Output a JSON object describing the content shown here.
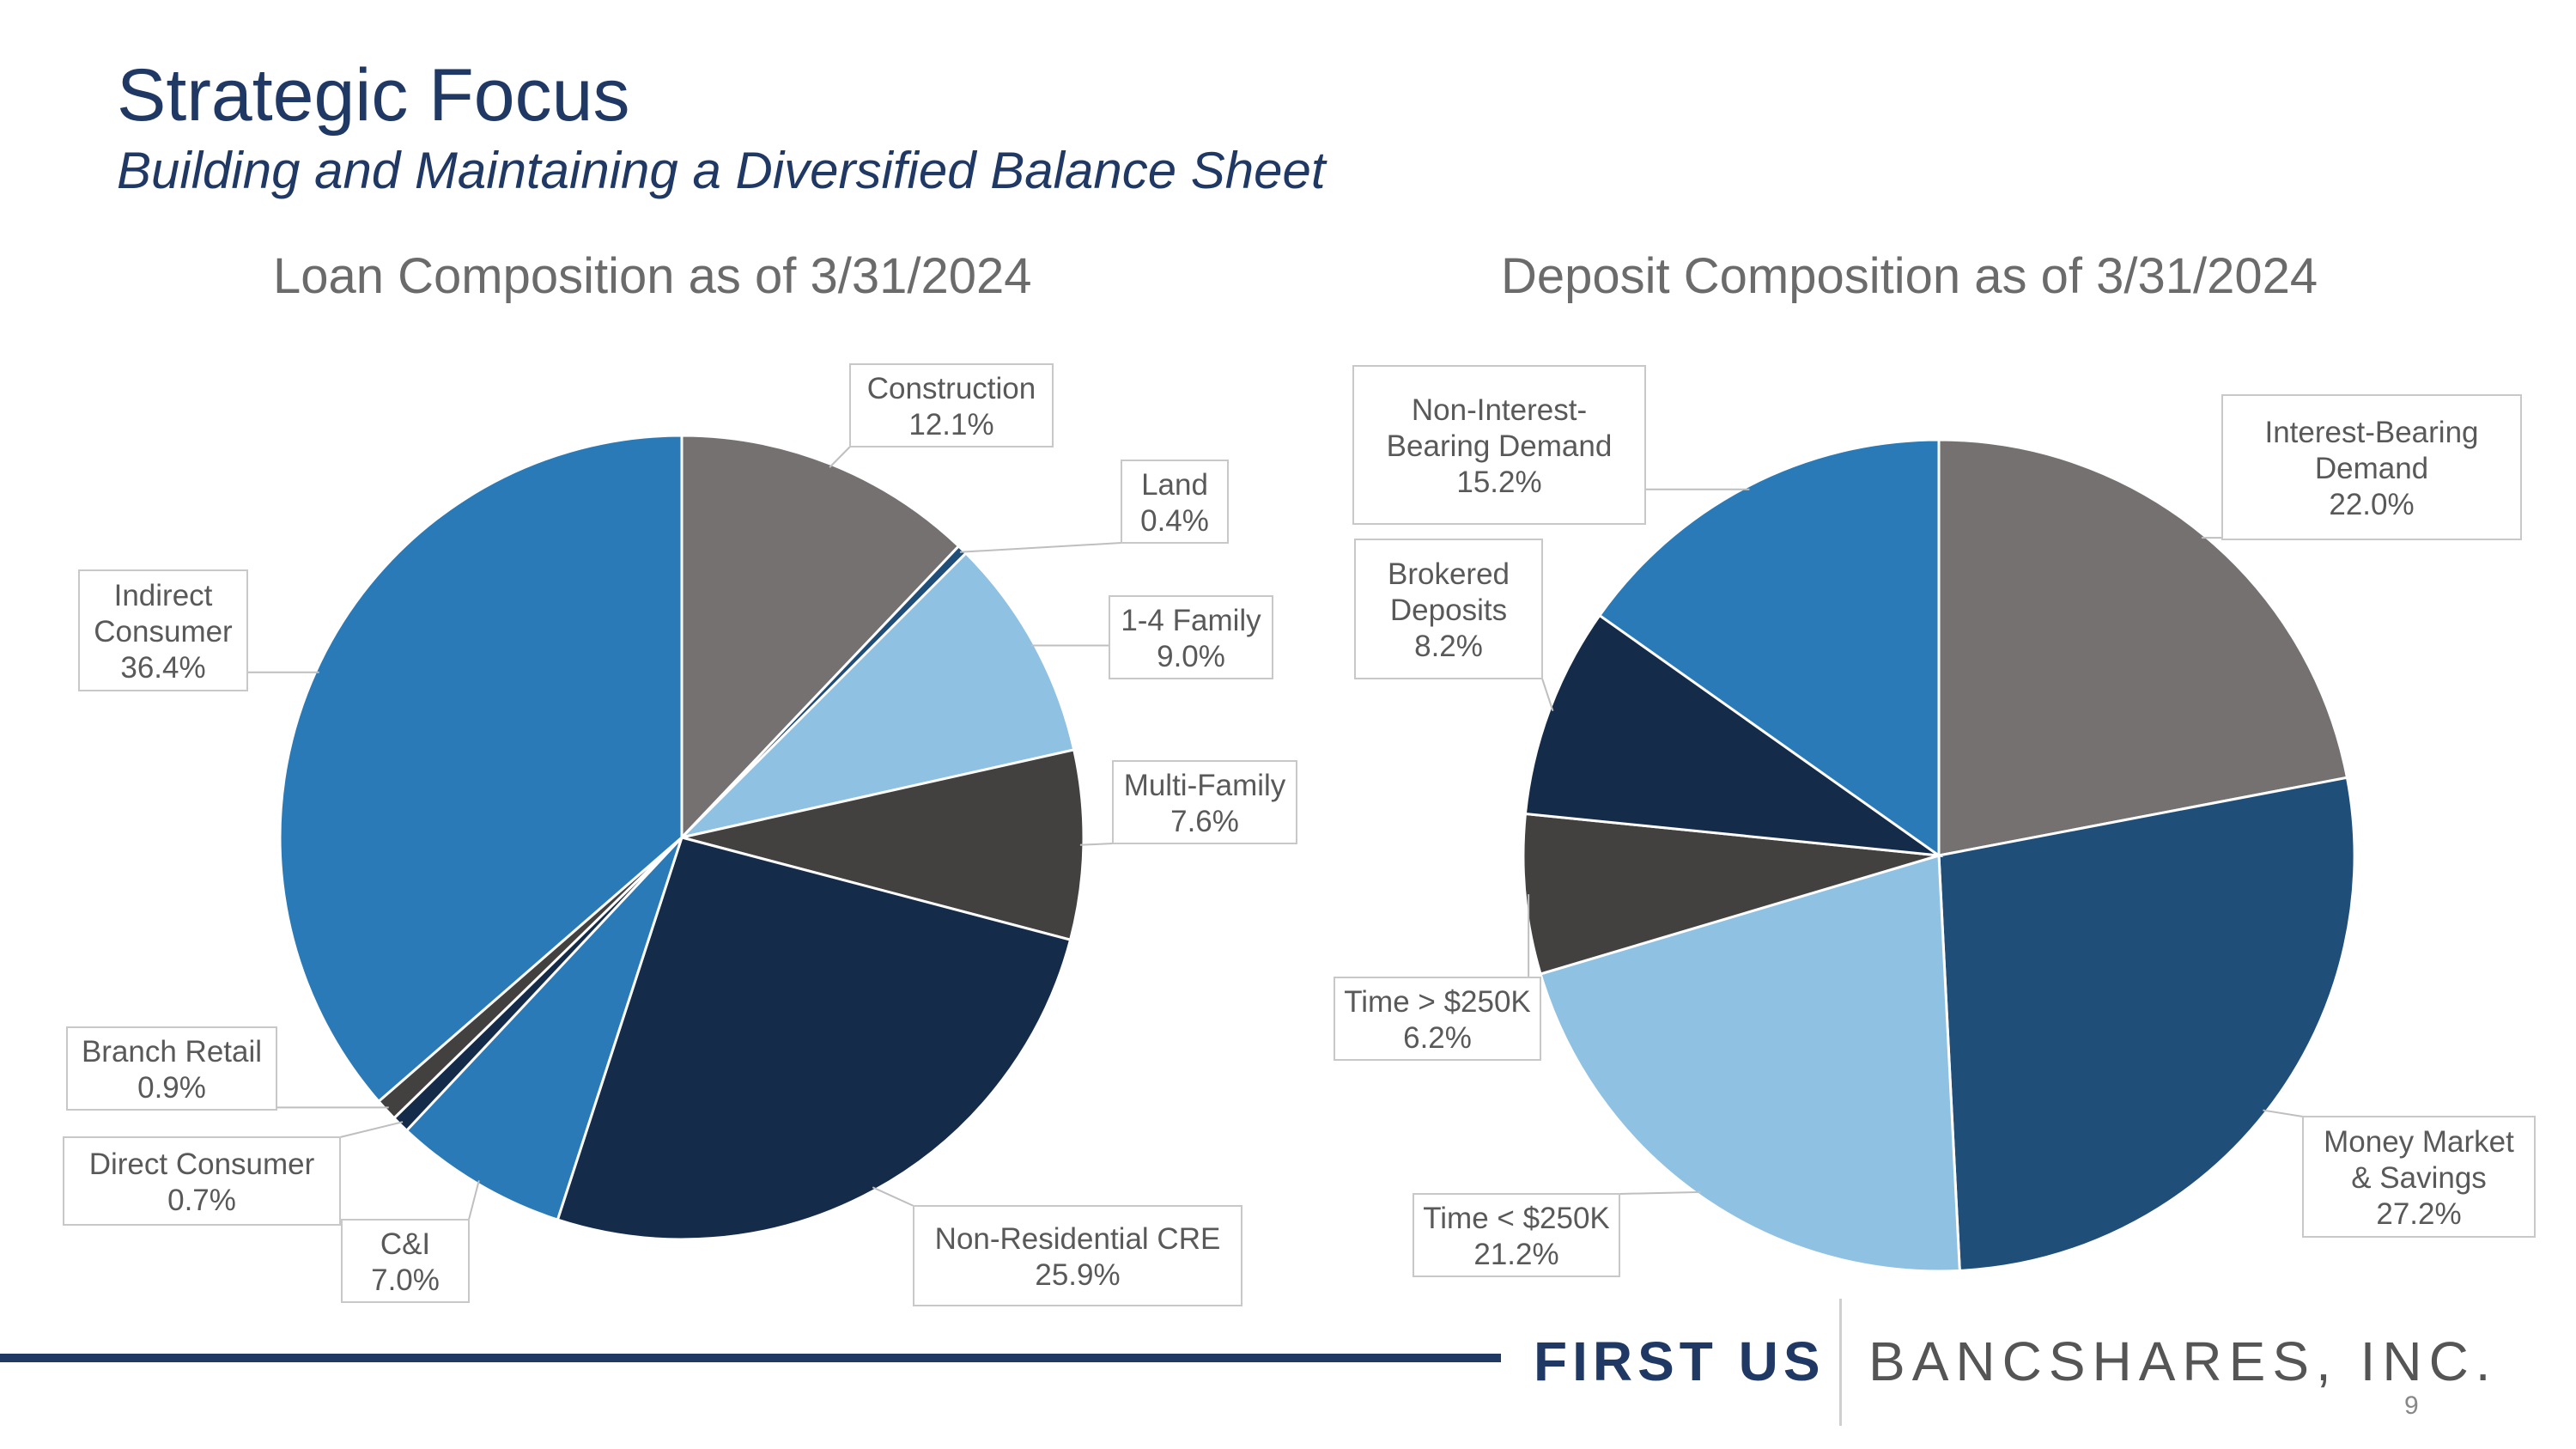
{
  "header": {
    "title": "Strategic Focus",
    "subtitle": "Building and Maintaining a Diversified Balance Sheet"
  },
  "chart_data": [
    {
      "type": "pie",
      "title": "Loan Composition as of 3/31/2024",
      "labels": [
        "Construction",
        "Land",
        "1-4 Family",
        "Multi-Family",
        "Non-Residential CRE",
        "C&I",
        "Direct Consumer",
        "Branch Retail",
        "Indirect Consumer"
      ],
      "label_lines": [
        [
          "Construction"
        ],
        [
          "Land"
        ],
        [
          "1-4 Family"
        ],
        [
          "Multi-Family"
        ],
        [
          "Non-Residential CRE"
        ],
        [
          "C&I"
        ],
        [
          "Direct Consumer"
        ],
        [
          "Branch Retail"
        ],
        [
          "Indirect",
          "Consumer"
        ]
      ],
      "values": [
        12.1,
        0.4,
        9.0,
        7.6,
        25.9,
        7.0,
        0.7,
        0.9,
        36.4
      ],
      "value_labels": [
        "12.1%",
        "0.4%",
        "9.0%",
        "7.6%",
        "25.9%",
        "7.0%",
        "0.7%",
        "0.9%",
        "36.4%"
      ],
      "colors": [
        "#767171",
        "#1f4e79",
        "#8fc1e3",
        "#434140",
        "#142c4a",
        "#2a7ab8",
        "#142c4a",
        "#434140",
        "#2a7ab8"
      ]
    },
    {
      "type": "pie",
      "title": "Deposit Composition as of 3/31/2024",
      "labels": [
        "Interest-Bearing Demand",
        "Money Market & Savings",
        "Time < $250K",
        "Time > $250K",
        "Brokered Deposits",
        "Non-Interest-Bearing Demand"
      ],
      "label_lines": [
        [
          "Interest-Bearing",
          "Demand"
        ],
        [
          "Money Market",
          "& Savings"
        ],
        [
          "Time < $250K"
        ],
        [
          "Time > $250K"
        ],
        [
          "Brokered",
          "Deposits"
        ],
        [
          "Non-Interest-",
          "Bearing Demand"
        ]
      ],
      "values": [
        22.0,
        27.2,
        21.2,
        6.2,
        8.2,
        15.2
      ],
      "value_labels": [
        "22.0%",
        "27.2%",
        "21.2%",
        "6.2%",
        "8.2%",
        "15.2%"
      ],
      "colors": [
        "#767171",
        "#1f4e79",
        "#8fc1e3",
        "#434140",
        "#142c4a",
        "#2a7ab8"
      ]
    }
  ],
  "footer": {
    "brand_bold": "FIRST US",
    "brand_light": "BANCSHARES, INC.",
    "page_number": "9"
  }
}
